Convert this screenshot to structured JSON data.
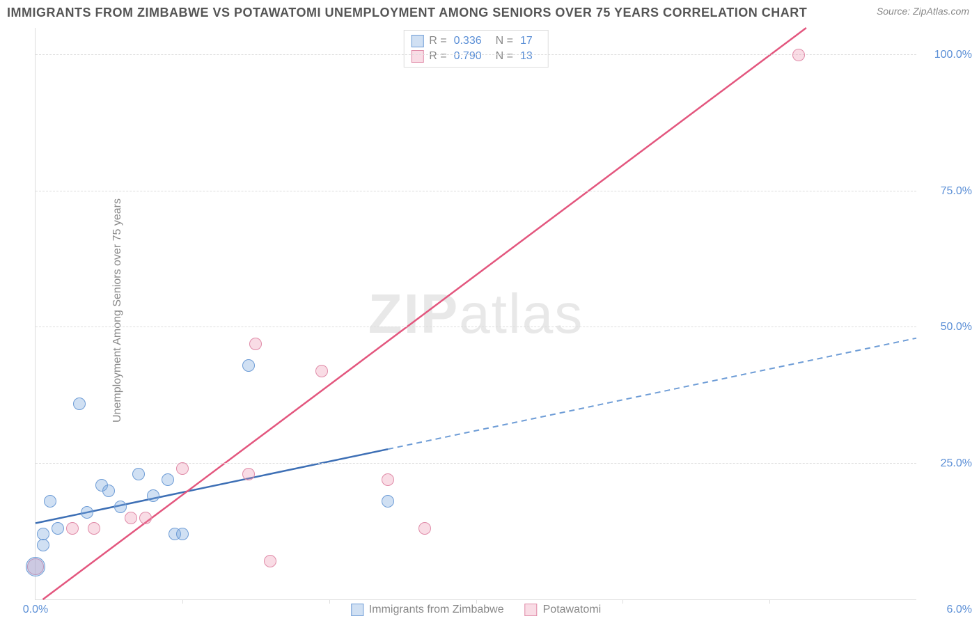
{
  "title": "IMMIGRANTS FROM ZIMBABWE VS POTAWATOMI UNEMPLOYMENT AMONG SENIORS OVER 75 YEARS CORRELATION CHART",
  "source": "Source: ZipAtlas.com",
  "y_axis_label": "Unemployment Among Seniors over 75 years",
  "watermark_bold": "ZIP",
  "watermark_rest": "atlas",
  "chart": {
    "type": "scatter",
    "background_color": "#ffffff",
    "grid_color": "#dddddd",
    "grid_dash": "4,4",
    "xlim": [
      0.0,
      6.0
    ],
    "ylim": [
      0.0,
      105.0
    ],
    "y_ticks": [
      {
        "value": 25.0,
        "label": "25.0%"
      },
      {
        "value": 50.0,
        "label": "50.0%"
      },
      {
        "value": 75.0,
        "label": "75.0%"
      },
      {
        "value": 100.0,
        "label": "100.0%"
      }
    ],
    "x_label_left": {
      "value": 0.0,
      "label": "0.0%"
    },
    "x_label_right": {
      "value": 6.0,
      "label": "6.0%"
    },
    "x_tick_positions": [
      1.0,
      2.0,
      3.0,
      4.0,
      5.0
    ],
    "axis_label_color": "#5b8fd6",
    "axis_label_fontsize": 16
  },
  "series": {
    "zimbabwe": {
      "label": "Immigrants from Zimbabwe",
      "fill_color": "rgba(120,165,220,0.35)",
      "stroke_color": "#6d9cd6",
      "line_color": "#3d6fb5",
      "line_width": 2.5,
      "dash_color": "#6d9cd6",
      "marker_radius": 9,
      "R": "0.336",
      "N": "17",
      "trend": {
        "x1": 0.0,
        "y1": 14.0,
        "x2": 6.0,
        "y2": 48.0,
        "solid_until_x": 2.4
      },
      "points": [
        {
          "x": 0.0,
          "y": 6.0,
          "r": 14
        },
        {
          "x": 0.05,
          "y": 12.0,
          "r": 9
        },
        {
          "x": 0.05,
          "y": 10.0,
          "r": 9
        },
        {
          "x": 0.1,
          "y": 18.0,
          "r": 9
        },
        {
          "x": 0.15,
          "y": 13.0,
          "r": 9
        },
        {
          "x": 0.3,
          "y": 36.0,
          "r": 9
        },
        {
          "x": 0.35,
          "y": 16.0,
          "r": 9
        },
        {
          "x": 0.45,
          "y": 21.0,
          "r": 9
        },
        {
          "x": 0.5,
          "y": 20.0,
          "r": 9
        },
        {
          "x": 0.58,
          "y": 17.0,
          "r": 9
        },
        {
          "x": 0.7,
          "y": 23.0,
          "r": 9
        },
        {
          "x": 0.8,
          "y": 19.0,
          "r": 9
        },
        {
          "x": 0.9,
          "y": 22.0,
          "r": 9
        },
        {
          "x": 0.95,
          "y": 12.0,
          "r": 9
        },
        {
          "x": 1.0,
          "y": 12.0,
          "r": 9
        },
        {
          "x": 1.45,
          "y": 43.0,
          "r": 9
        },
        {
          "x": 2.4,
          "y": 18.0,
          "r": 9
        }
      ]
    },
    "potawatomi": {
      "label": "Potawatomi",
      "fill_color": "rgba(235,140,170,0.30)",
      "stroke_color": "#e08ba8",
      "line_color": "#e3567e",
      "line_width": 2.5,
      "marker_radius": 9,
      "R": "0.790",
      "N": "13",
      "trend": {
        "x1": 0.05,
        "y1": 0.0,
        "x2": 5.25,
        "y2": 105.0
      },
      "points": [
        {
          "x": 0.0,
          "y": 6.0,
          "r": 12
        },
        {
          "x": 0.25,
          "y": 13.0,
          "r": 9
        },
        {
          "x": 0.4,
          "y": 13.0,
          "r": 9
        },
        {
          "x": 0.65,
          "y": 15.0,
          "r": 9
        },
        {
          "x": 0.75,
          "y": 15.0,
          "r": 9
        },
        {
          "x": 1.0,
          "y": 24.0,
          "r": 9
        },
        {
          "x": 1.45,
          "y": 23.0,
          "r": 9
        },
        {
          "x": 1.5,
          "y": 47.0,
          "r": 9
        },
        {
          "x": 1.6,
          "y": 7.0,
          "r": 9
        },
        {
          "x": 1.95,
          "y": 42.0,
          "r": 9
        },
        {
          "x": 2.4,
          "y": 22.0,
          "r": 9
        },
        {
          "x": 2.65,
          "y": 13.0,
          "r": 9
        },
        {
          "x": 5.2,
          "y": 100.0,
          "r": 9
        }
      ]
    }
  },
  "legend_top": {
    "r_label": "R =",
    "n_label": "N ="
  },
  "title_color": "#555555",
  "title_fontsize": 18,
  "source_color": "#888888"
}
